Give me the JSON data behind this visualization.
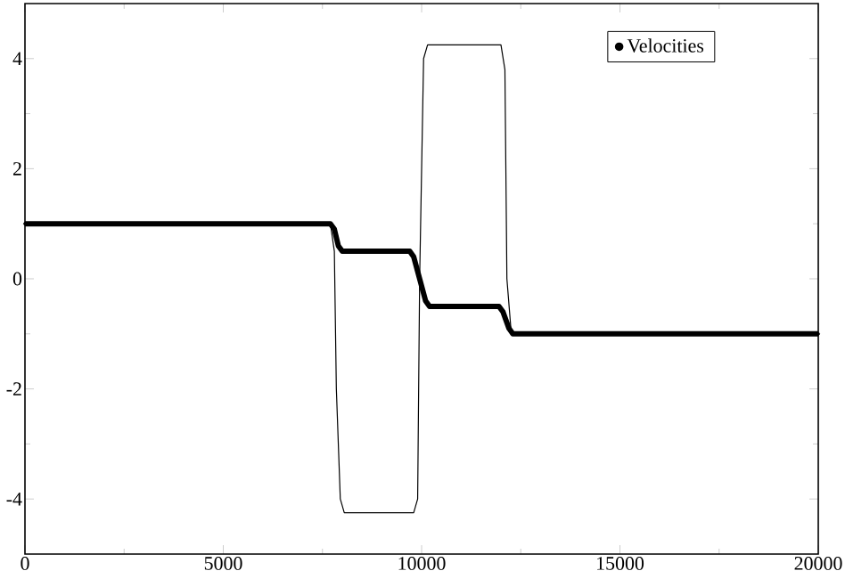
{
  "chart_data": {
    "type": "line",
    "xlim": [
      0,
      20000
    ],
    "ylim": [
      -5,
      5
    ],
    "xticks": [
      0,
      5000,
      10000,
      15000,
      20000
    ],
    "yticks": [
      -4,
      -2,
      0,
      2,
      4
    ],
    "grid": false,
    "legend": "top right",
    "series": [
      {
        "color": "#000000",
        "x": [
          7700,
          7800,
          7850,
          7950,
          8050,
          9800,
          9900,
          9950,
          10050,
          10150,
          12000,
          12100,
          12150,
          12250,
          12300
        ],
        "values": [
          1,
          0.5,
          -2,
          -4,
          -4.25,
          -4.25,
          -4,
          0,
          4,
          4.25,
          4.25,
          3.8,
          0,
          -0.9,
          -1
        ]
      },
      {
        "name": "Velocities",
        "color": "#000000",
        "marker": "circle",
        "x": [
          0,
          7700,
          7800,
          7900,
          8000,
          9700,
          9800,
          9950,
          10100,
          10200,
          11950,
          12050,
          12200,
          12300,
          20000
        ],
        "values": [
          1,
          1,
          0.9,
          0.6,
          0.5,
          0.5,
          0.4,
          0,
          -0.4,
          -0.5,
          -0.5,
          -0.6,
          -0.9,
          -1,
          -1
        ]
      }
    ]
  }
}
